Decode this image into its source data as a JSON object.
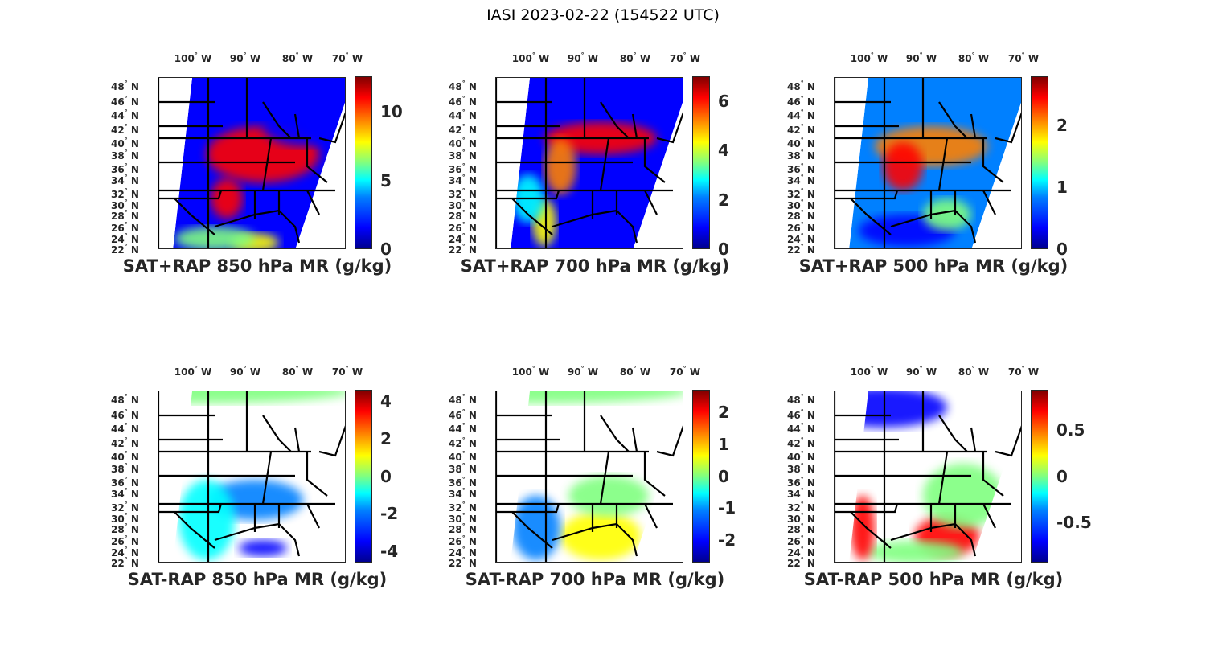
{
  "title": "IASI 2023-02-22 (154522 UTC)",
  "lon_labels": [
    "100",
    "90",
    "80",
    "70"
  ],
  "lon_suffix": "W",
  "lat_labels": [
    "48",
    "46",
    "44",
    "42",
    "40",
    "38",
    "36",
    "34",
    "32",
    "30",
    "28",
    "26",
    "24",
    "22"
  ],
  "lat_suffix": "N",
  "degree_symbol": "°",
  "panels": [
    {
      "title": "SAT+RAP 850 hPa MR (g/kg)",
      "clim": [
        0,
        12.6
      ],
      "ticks": [
        "0",
        "5",
        "10"
      ],
      "tick_values": [
        0,
        5,
        10
      ]
    },
    {
      "title": "SAT+RAP 700 hPa MR (g/kg)",
      "clim": [
        0,
        7.0
      ],
      "ticks": [
        "0",
        "2",
        "4",
        "6"
      ],
      "tick_values": [
        0,
        2,
        4,
        6
      ]
    },
    {
      "title": "SAT+RAP 500 hPa MR (g/kg)",
      "clim": [
        0,
        2.8
      ],
      "ticks": [
        "0",
        "1",
        "2"
      ],
      "tick_values": [
        0,
        1,
        2
      ]
    },
    {
      "title": "SAT-RAP 850 hPa MR (g/kg)",
      "clim": [
        -4.6,
        4.6
      ],
      "ticks": [
        "-4",
        "-2",
        "0",
        "2",
        "4"
      ],
      "tick_values": [
        -4,
        -2,
        0,
        2,
        4
      ]
    },
    {
      "title": "SAT-RAP 700 hPa MR (g/kg)",
      "clim": [
        -2.7,
        2.7
      ],
      "ticks": [
        "-2",
        "-1",
        "0",
        "1",
        "2"
      ],
      "tick_values": [
        -2,
        -1,
        0,
        1,
        2
      ]
    },
    {
      "title": "SAT-RAP 500 hPa MR (g/kg)",
      "clim": [
        -0.94,
        0.94
      ],
      "ticks": [
        "-0.5",
        "0",
        "0.5"
      ],
      "tick_values": [
        -0.5,
        0,
        0.5
      ]
    }
  ],
  "colormap": "jet"
}
